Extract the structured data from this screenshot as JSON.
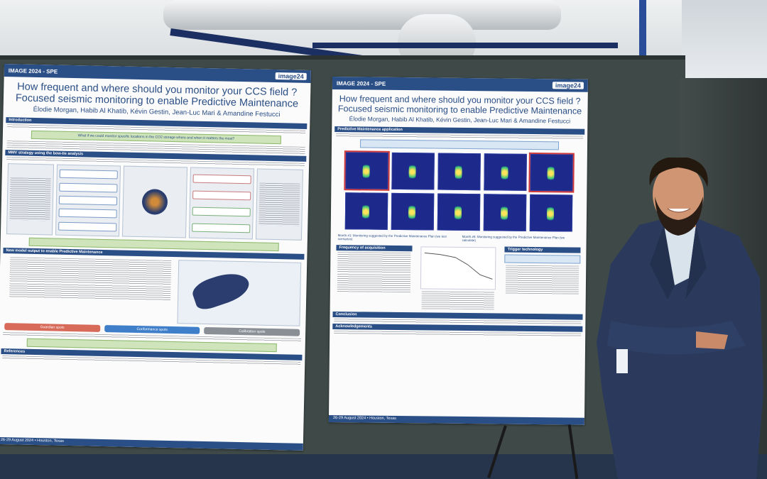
{
  "posters": [
    {
      "header_left": "IMAGE 2024 - SPE",
      "logo": "image24",
      "title_line1": "How frequent and where should you monitor your CCS field ?",
      "title_line2": "Focused seismic monitoring to enable Predictive Maintenance",
      "authors": "Élodie Morgan, Habib Al Khatib, Kévin Gestin, Jean-Luc Mari & Amandine Festucci",
      "sections": [
        "Introduction",
        "MMV strategy using the bow-tie analysis",
        "New model output to enable Predictive Maintenance",
        "References"
      ],
      "callout": "What if we could monitor specific locations in the CO2 storage where and when it matters the most?",
      "badges": [
        "Guardian spots",
        "Conformance spots",
        "Calibration spots"
      ],
      "footer": "26-29 August 2024 • Houston, Texas"
    },
    {
      "header_left": "IMAGE 2024 - SPE",
      "logo": "image24",
      "title_line1": "How frequent and where should you monitor your CCS field ?",
      "title_line2": "Focused seismic monitoring to enable Predictive Maintenance",
      "authors": "Élodie Morgan, Habib Al Khatib, Kévin Gestin, Jean-Luc Mari & Amandine Festucci",
      "sections": [
        "Predictive Maintenance application",
        "Frequency of acquisition",
        "Trigger technology",
        "Conclusion",
        "Acknowledgements"
      ],
      "month_left": "Month #1: Monitoring suggested by the Predictive Maintenance Plan (we test scenarios)",
      "month_right": "Month #5: Monitoring suggested by the Predictive Maintenance Plan (we calculate)",
      "footer": "26-29 August 2024 • Houston, Texas"
    }
  ],
  "colors": {
    "poster_blue": "#2a4e86",
    "board": "#3f4a48",
    "suit": "#2b3a5c"
  }
}
